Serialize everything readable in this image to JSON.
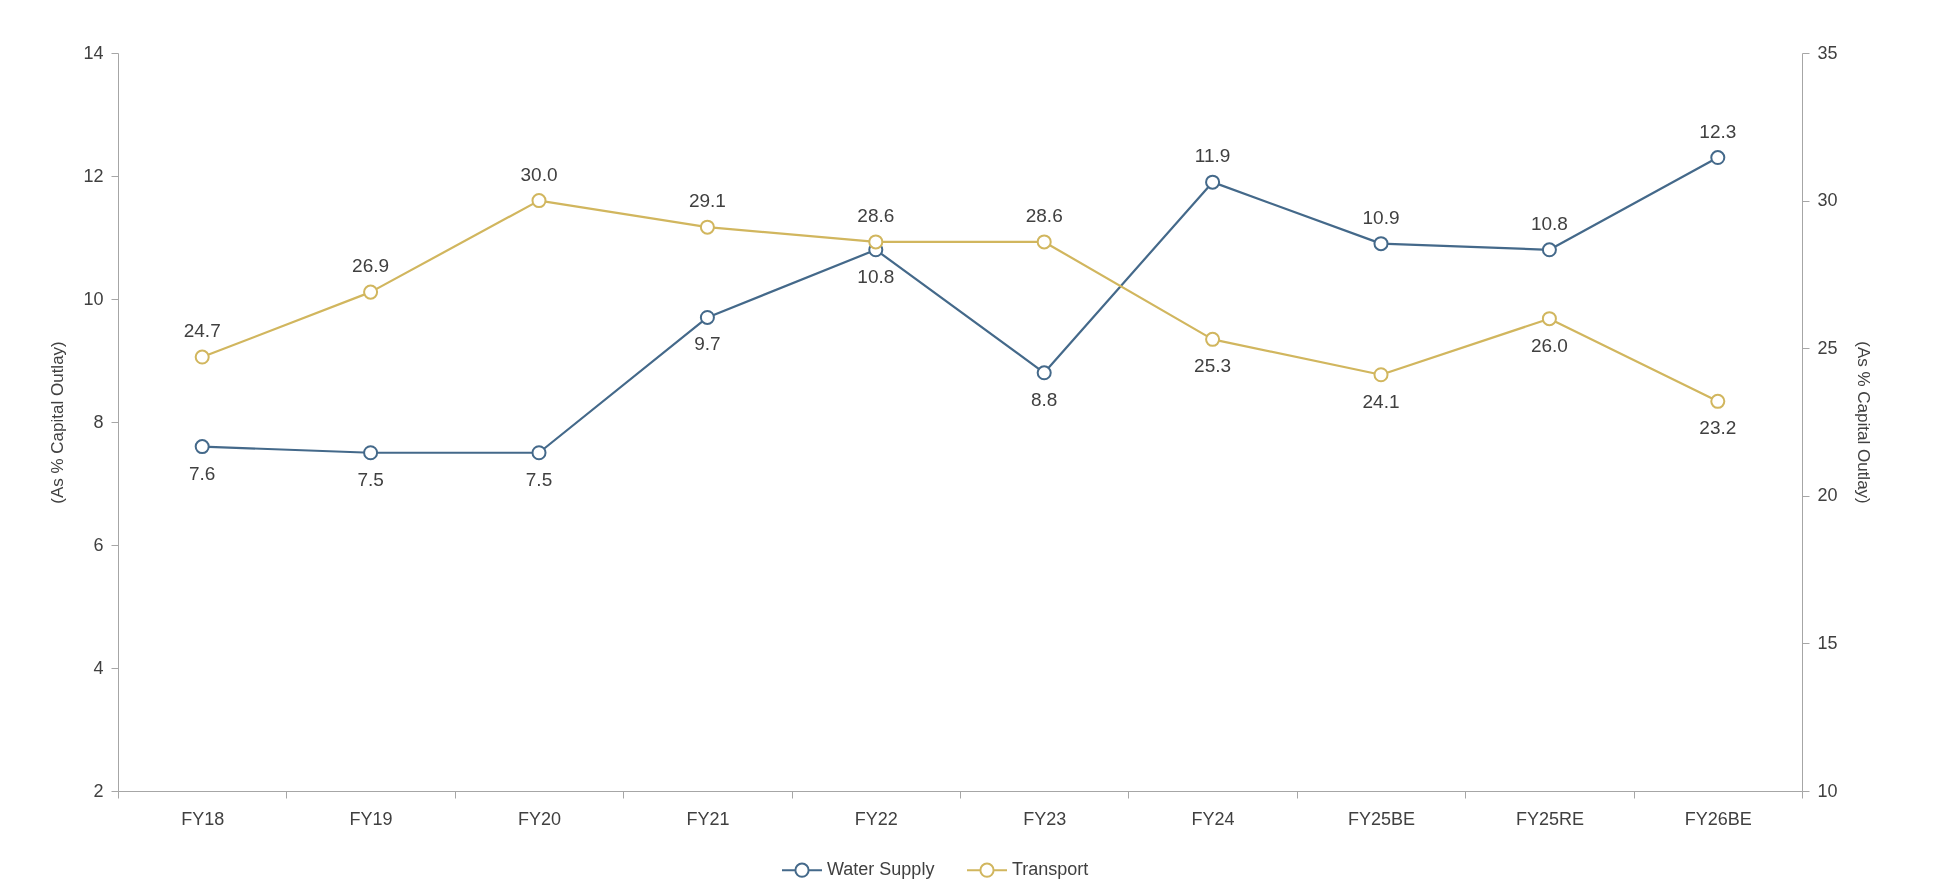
{
  "chart_data": {
    "type": "line",
    "categories": [
      "FY18",
      "FY19",
      "FY20",
      "FY21",
      "FY22",
      "FY23",
      "FY24",
      "FY25BE",
      "FY25RE",
      "FY26BE"
    ],
    "series": [
      {
        "name": "Water Supply",
        "color": "#44698a",
        "axis": "y",
        "values": [
          7.6,
          7.5,
          7.5,
          9.7,
          10.8,
          8.8,
          11.9,
          10.9,
          10.8,
          12.3
        ],
        "value_labels": [
          "7.6",
          "7.5",
          "7.5",
          "9.7",
          "10.8",
          "8.8",
          "11.9",
          "10.9",
          "10.8",
          "12.3"
        ]
      },
      {
        "name": "Transport",
        "color": "#d1b65e",
        "axis": "y2",
        "values": [
          24.7,
          26.9,
          30.0,
          29.1,
          28.6,
          28.6,
          25.3,
          24.1,
          26.0,
          23.2
        ],
        "value_labels": [
          "24.7",
          "26.9",
          "30.0",
          "29.1",
          "28.6",
          "28.6",
          "25.3",
          "24.1",
          "26.0",
          "23.2"
        ]
      }
    ],
    "ylabel": "(As % Capital Outlay)",
    "y2label": "(As % Capital Outlay)",
    "ylim": [
      2,
      14
    ],
    "yticks": [
      2,
      4,
      6,
      8,
      10,
      12,
      14
    ],
    "y2lim": [
      10,
      35
    ],
    "y2ticks": [
      10,
      15,
      20,
      25,
      30,
      35
    ],
    "legend": "bottom",
    "marker": "circle",
    "line_style": "solid"
  }
}
